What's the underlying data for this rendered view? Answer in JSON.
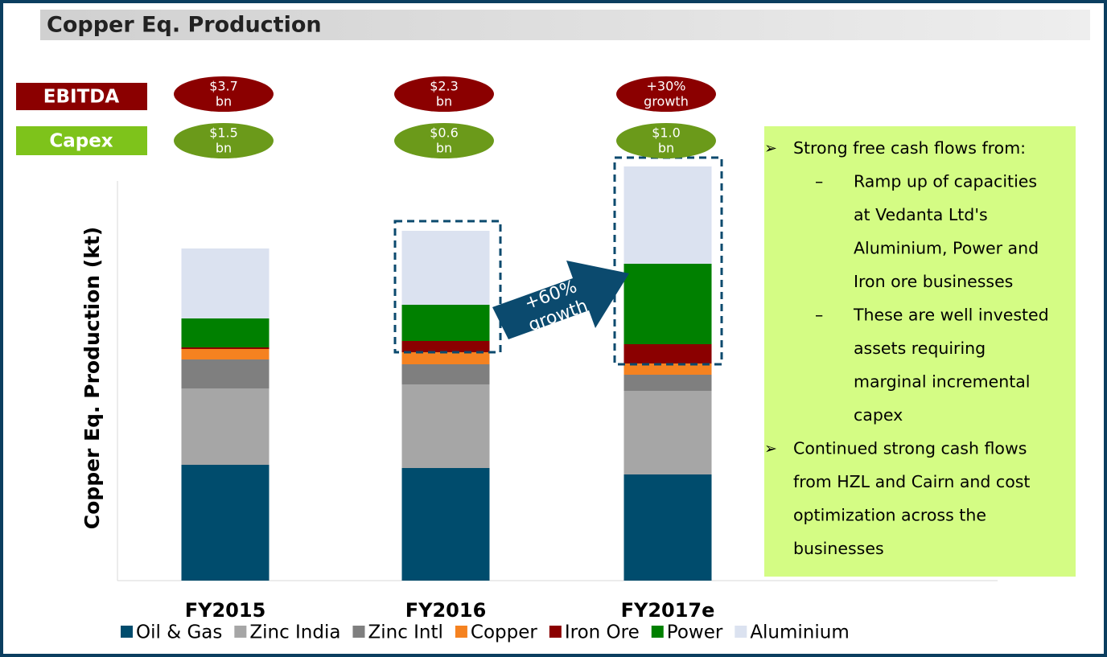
{
  "chart_data": {
    "type": "stacked_bar",
    "title": "Copper Eq. Production",
    "y_label": "Copper Eq. Production (kt)",
    "categories": [
      "FY2015",
      "FY2016",
      "FY2017e"
    ],
    "ylim": [
      0,
      500
    ],
    "series": [
      {
        "name": "Oil & Gas",
        "color": "#004c6d",
        "values": [
          144,
          140,
          132
        ]
      },
      {
        "name": "Zinc India",
        "color": "#a6a6a6",
        "values": [
          95,
          104,
          104
        ]
      },
      {
        "name": "Zinc Intl",
        "color": "#7f7f7f",
        "values": [
          36,
          25,
          20
        ]
      },
      {
        "name": "Copper",
        "color": "#f58220",
        "values": [
          13,
          15,
          14
        ]
      },
      {
        "name": "Iron Ore",
        "color": "#8b0000",
        "values": [
          2,
          14,
          24
        ]
      },
      {
        "name": "Power",
        "color": "#008000",
        "values": [
          36,
          45,
          100
        ]
      },
      {
        "name": "Aluminium",
        "color": "#dbe2f0",
        "values": [
          87,
          92,
          121
        ]
      }
    ],
    "ebitda": {
      "label": "EBITDA",
      "color": "#8b0000",
      "values": [
        [
          "$3.7",
          "bn"
        ],
        [
          "$2.3",
          "bn"
        ],
        [
          "+30%",
          "growth"
        ]
      ]
    },
    "capex": {
      "label": "Capex",
      "color": "#6b9a1a",
      "values": [
        [
          "$1.5",
          "bn"
        ],
        [
          "$0.6",
          "bn"
        ],
        [
          "$1.0",
          "bn"
        ]
      ]
    },
    "arrow_text": [
      "+60%",
      "growth"
    ],
    "notes": [
      {
        "marker": "➢",
        "lines": [
          "Strong free cash flows from:"
        ],
        "sub_items": [
          {
            "marker": "–",
            "lines": [
              "Ramp up of capacities",
              "at Vedanta Ltd's",
              "Aluminium, Power and",
              "Iron ore businesses"
            ]
          },
          {
            "marker": "–",
            "lines": [
              "These are well invested",
              "assets requiring",
              "marginal incremental",
              "capex"
            ]
          }
        ]
      },
      {
        "marker": "➢",
        "lines": [
          "Continued strong cash flows",
          "from HZL and Cairn and cost",
          "optimization across the",
          "businesses"
        ],
        "sub_items": []
      }
    ]
  }
}
